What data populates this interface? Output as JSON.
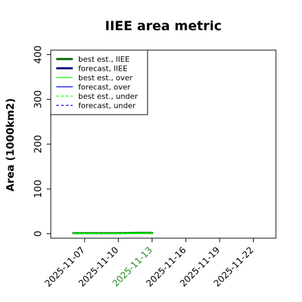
{
  "chart_data": {
    "type": "line",
    "title": "IIEE area metric",
    "xlabel": "",
    "ylabel": "Area (1000km2)",
    "xlim": [
      "2025-11-04",
      "2025-11-24"
    ],
    "ylim": [
      -10,
      410
    ],
    "yticks": [
      0,
      100,
      200,
      300,
      400
    ],
    "xticks": [
      {
        "label": "2025-11-07",
        "value": "2025-11-07",
        "color": "#000000"
      },
      {
        "label": "2025-11-10",
        "value": "2025-11-10",
        "color": "#000000"
      },
      {
        "label": "2025-11-13",
        "value": "2025-11-13",
        "color": "#228B22"
      },
      {
        "label": "2025-11-16",
        "value": "2025-11-16",
        "color": "#000000"
      },
      {
        "label": "2025-11-19",
        "value": "2025-11-19",
        "color": "#000000"
      },
      {
        "label": "2025-11-22",
        "value": "2025-11-22",
        "color": "#000000"
      }
    ],
    "legend_position": "top-left",
    "grid": false,
    "series": [
      {
        "name": "best est., IIEE",
        "color": "#006400",
        "width": 3,
        "dash": "",
        "x": [
          "2025-11-06",
          "2025-11-07",
          "2025-11-10",
          "2025-11-11",
          "2025-11-12",
          "2025-11-13"
        ],
        "y": [
          1,
          1,
          1,
          1.5,
          2,
          2
        ]
      },
      {
        "name": "forecast, IIEE",
        "color": "#00008B",
        "width": 3,
        "dash": "",
        "x": [],
        "y": []
      },
      {
        "name": "best est., over",
        "color": "#00FF00",
        "width": 1.2,
        "dash": "",
        "x": [
          "2025-11-06",
          "2025-11-07",
          "2025-11-10",
          "2025-11-11",
          "2025-11-12",
          "2025-11-13"
        ],
        "y": [
          1,
          1,
          1,
          1.5,
          2,
          2
        ]
      },
      {
        "name": "forecast, over",
        "color": "#0000FF",
        "width": 1.2,
        "dash": "",
        "x": [],
        "y": []
      },
      {
        "name": "best est., under",
        "color": "#00FF00",
        "width": 1.2,
        "dash": "4,3",
        "x": [
          "2025-11-06",
          "2025-11-07",
          "2025-11-10",
          "2025-11-11",
          "2025-11-12",
          "2025-11-13"
        ],
        "y": [
          0,
          0,
          0,
          0,
          0,
          0
        ]
      },
      {
        "name": "forecast, under",
        "color": "#0000FF",
        "width": 1.2,
        "dash": "4,3",
        "x": [],
        "y": []
      }
    ]
  }
}
